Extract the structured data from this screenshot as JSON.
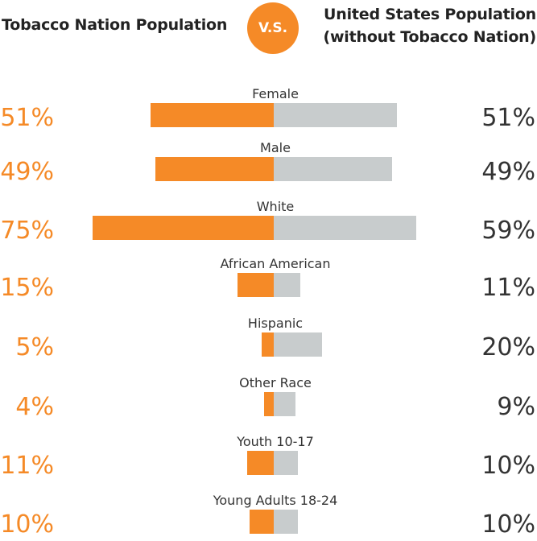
{
  "header": {
    "left_title": "Tobacco Nation Population",
    "vs_label": "V.S.",
    "right_title_line1": "United States Population",
    "right_title_line2": "(without Tobacco Nation)"
  },
  "colors": {
    "tobacco_nation": "#f58a27",
    "united_states": "#c8cccd",
    "left_text": "#f58a27",
    "right_text": "#333333",
    "category_text": "#333333"
  },
  "chart_data": {
    "type": "bar",
    "categories": [
      "Female",
      "Male",
      "White",
      "African American",
      "Hispanic",
      "Other Race",
      "Youth 10-17",
      "Young Adults 18-24"
    ],
    "series": [
      {
        "name": "Tobacco Nation Population",
        "values": [
          51,
          49,
          75,
          15,
          5,
          4,
          11,
          10
        ],
        "labels": [
          "51%",
          "49%",
          "75%",
          "15%",
          "5%",
          "4%",
          "11%",
          "10%"
        ]
      },
      {
        "name": "United States Population (without Tobacco Nation)",
        "values": [
          51,
          49,
          59,
          11,
          20,
          9,
          10,
          10
        ],
        "labels": [
          "51%",
          "49%",
          "59%",
          "11%",
          "20%",
          "9%",
          "10%",
          "10%"
        ]
      }
    ]
  }
}
